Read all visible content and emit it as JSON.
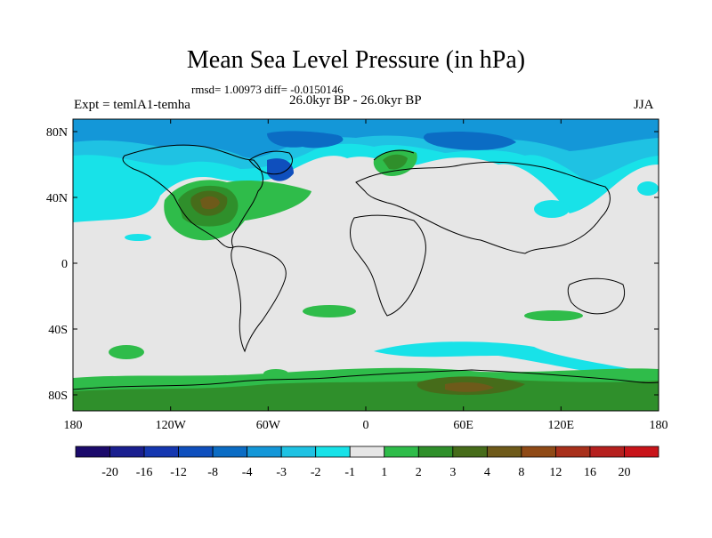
{
  "title": "Mean Sea Level Pressure (in hPa)",
  "stats": "rmsd= 1.00973 diff= -0.0150146",
  "experiment": "Expt = temlA1-temha",
  "period": "26.0kyr BP - 26.0kyr BP",
  "season": "JJA",
  "lat_ticks": [
    "80N",
    "40N",
    "0",
    "40S",
    "80S"
  ],
  "lon_ticks": [
    "180",
    "120W",
    "60W",
    "0",
    "60E",
    "120E",
    "180"
  ],
  "colorbar": {
    "labels": [
      "-20",
      "-16",
      "-12",
      "-8",
      "-4",
      "-3",
      "-2",
      "-1",
      "1",
      "2",
      "3",
      "4",
      "8",
      "12",
      "16",
      "20"
    ],
    "colors": [
      "#1b0a6b",
      "#1a1f8f",
      "#1537b0",
      "#0f4fbd",
      "#0b6cc4",
      "#1497d8",
      "#1fc2e3",
      "#18e2e8",
      "#e6e6e6",
      "#2fbc4a",
      "#2f8f2b",
      "#466c1a",
      "#6e5a1a",
      "#8f4a16",
      "#a8301b",
      "#b5201e",
      "#c8141a"
    ]
  },
  "colors": {
    "background": "#e6e6e6",
    "coast": "#000000"
  }
}
